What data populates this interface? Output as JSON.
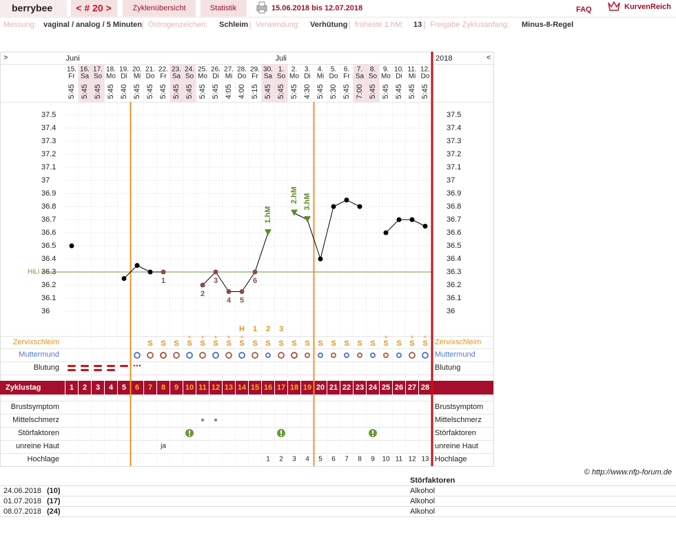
{
  "header": {
    "user": "berrybee",
    "cycle": "< # 20 >",
    "tabs": [
      "Zyklenübersicht",
      "Statistik"
    ],
    "range": "15.06.2018 bis 12.07.2018",
    "faq": "FAQ",
    "brand": "KurvenReich"
  },
  "info": [
    {
      "label": "Messung:",
      "value": "vaginal / analog / 5 Minuten"
    },
    {
      "label": "Östrogenzeichen:",
      "value": "Schleim"
    },
    {
      "label": "Verwendung:",
      "value": "Verhütung"
    },
    {
      "label": "früheste 1.hM:",
      "value": 13
    },
    {
      "label": "Freigabe Zyklusanfang:",
      "value": "Minus-8-Regel"
    }
  ],
  "chart_data": {
    "type": "line",
    "nav_left": ">",
    "nav_right": "<",
    "year": "2018",
    "month_labels": [
      "Juni",
      null,
      null,
      null,
      null,
      null,
      null,
      null,
      null,
      null,
      null,
      null,
      null,
      null,
      null,
      null,
      "Juli",
      null,
      null,
      null,
      null,
      null,
      null,
      null,
      null,
      null,
      null,
      null
    ],
    "categories": [
      "15.",
      "16.",
      "17.",
      "18.",
      "19.",
      "20.",
      "21.",
      "22.",
      "23.",
      "24.",
      "25.",
      "26.",
      "27.",
      "28.",
      "29.",
      "30.",
      "1.",
      "2.",
      "3.",
      "4.",
      "5.",
      "6.",
      "7.",
      "8.",
      "9.",
      "10.",
      "11.",
      "12."
    ],
    "weekdays": [
      "Fr",
      "Sa",
      "So",
      "Mo",
      "Di",
      "Mi",
      "Do",
      "Fr",
      "Sa",
      "So",
      "Mo",
      "Di",
      "Mi",
      "Do",
      "Fr",
      "Sa",
      "So",
      "Mo",
      "Di",
      "Mi",
      "Do",
      "Fr",
      "Sa",
      "So",
      "Mo",
      "Di",
      "Mi",
      "Do"
    ],
    "times": [
      "5:45",
      "5:45",
      "5:45",
      "5:45",
      "5:40",
      "5:45",
      "5:45",
      "5:45",
      "5:45",
      "5:45",
      "5:45",
      "5:45",
      "4:05",
      "4:00",
      "5:15",
      "5:45",
      "5:45",
      "5:45",
      "4:30",
      "5:45",
      "5:30",
      "5:45",
      "7:00",
      "5:45",
      "5:45",
      "5:45",
      "5:45",
      "5:45"
    ],
    "values": [
      36.5,
      null,
      null,
      null,
      36.25,
      36.35,
      36.3,
      36.3,
      null,
      null,
      36.2,
      36.3,
      36.15,
      36.15,
      36.3,
      36.6,
      null,
      36.75,
      36.7,
      36.4,
      36.8,
      36.85,
      36.8,
      null,
      36.6,
      36.7,
      36.7,
      36.65
    ],
    "point_labels": [
      null,
      null,
      null,
      null,
      null,
      null,
      null,
      "1",
      null,
      null,
      "2",
      "3",
      "4",
      "5",
      "6",
      "1.hM",
      null,
      "2.hM",
      "3.hM",
      null,
      null,
      null,
      null,
      null,
      null,
      null,
      null,
      null
    ],
    "color": "#000000",
    "ylim": [
      35.9,
      37.6
    ],
    "yticks": [
      36,
      36.1,
      36.2,
      36.3,
      36.4,
      36.5,
      36.6,
      36.7,
      36.8,
      36.9,
      37,
      37.1,
      37.2,
      37.3,
      37.4,
      37.5
    ],
    "grid": true,
    "hili": {
      "label": "HiLi",
      "value": 36.3
    }
  },
  "rows": {
    "labels": [
      "Zervixschleim",
      "Muttermund",
      "Blutung",
      "Brustsymptom",
      "Mittelschmerz",
      "Störfaktoren",
      "unreine Haut",
      "Hochlage"
    ],
    "phase_marks": [
      null,
      null,
      null,
      null,
      null,
      null,
      null,
      null,
      null,
      null,
      null,
      null,
      null,
      "H",
      "1",
      "2",
      "3",
      null,
      null,
      null,
      null,
      null,
      null,
      null,
      null,
      null,
      null,
      null
    ],
    "zervix": [
      null,
      null,
      null,
      null,
      null,
      null,
      "S",
      "S",
      "S",
      "S",
      "S",
      "S",
      "S",
      "S",
      "S",
      "S",
      "S",
      "S",
      "S",
      "S",
      "S",
      "S",
      "S",
      "S",
      "S",
      "S",
      "S",
      "S"
    ],
    "zervix_plus": [
      null,
      null,
      null,
      null,
      null,
      null,
      null,
      null,
      null,
      "+",
      "+",
      "+",
      "+",
      "+",
      null,
      null,
      null,
      null,
      null,
      null,
      null,
      null,
      null,
      null,
      "+",
      null,
      "+",
      "+"
    ],
    "zyklustag_label": "Zyklustag",
    "cycle_days": [
      1,
      2,
      3,
      4,
      5,
      6,
      7,
      8,
      9,
      10,
      11,
      12,
      13,
      14,
      15,
      16,
      17,
      18,
      19,
      20,
      21,
      22,
      23,
      24,
      25,
      26,
      27,
      28
    ],
    "unreine_haut": [
      null,
      null,
      null,
      null,
      null,
      null,
      null,
      "ja",
      null,
      null,
      null,
      null,
      null,
      null,
      null,
      null,
      null,
      null,
      null,
      null,
      null,
      null,
      null,
      null,
      null,
      null,
      null,
      null
    ],
    "hochlage": [
      null,
      null,
      null,
      null,
      null,
      null,
      null,
      null,
      null,
      null,
      null,
      null,
      null,
      null,
      null,
      1,
      2,
      3,
      4,
      5,
      6,
      7,
      8,
      9,
      10,
      11,
      12,
      13
    ]
  },
  "footer": {
    "copyright": "© http://www.nfp-forum.de",
    "table_header": "Störfaktoren",
    "table_rows": [
      [
        "24.06.2018",
        "(10)",
        "Alkohol"
      ],
      [
        "01.07.2018",
        "(17)",
        "Alkohol"
      ],
      [
        "08.07.2018",
        "(24)",
        "Alkohol"
      ]
    ]
  }
}
